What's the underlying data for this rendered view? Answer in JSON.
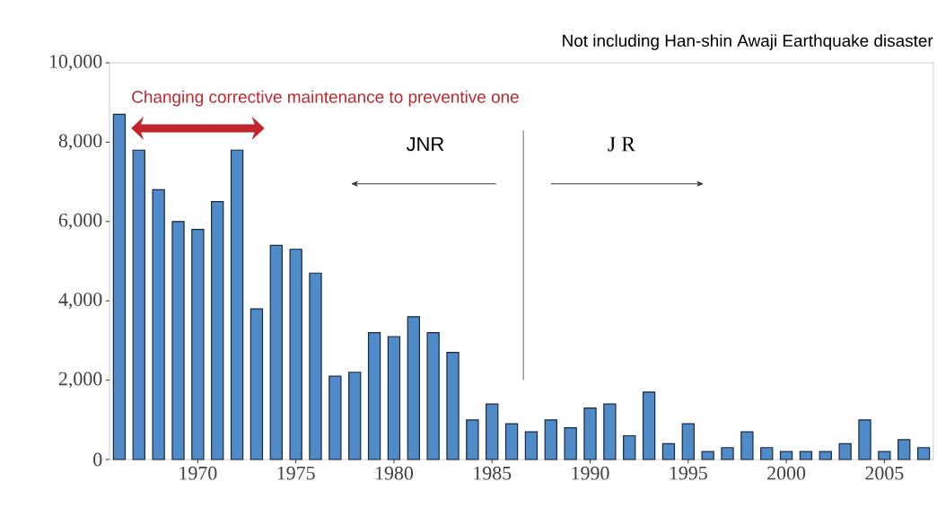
{
  "chart_data": {
    "type": "bar",
    "x": [
      1966,
      1967,
      1968,
      1969,
      1970,
      1971,
      1972,
      1973,
      1974,
      1975,
      1976,
      1977,
      1978,
      1979,
      1980,
      1981,
      1982,
      1983,
      1984,
      1985,
      1986,
      1987,
      1988,
      1989,
      1990,
      1991,
      1992,
      1993,
      1994,
      1995,
      1996,
      1997,
      1998,
      1999,
      2000,
      2001,
      2002,
      2003,
      2004,
      2005,
      2006,
      2007
    ],
    "values": [
      8700,
      7800,
      6800,
      6000,
      5800,
      6500,
      7800,
      3800,
      5400,
      5300,
      4700,
      2100,
      2200,
      3200,
      3100,
      3600,
      3200,
      2700,
      1000,
      1400,
      900,
      700,
      1000,
      800,
      1300,
      1400,
      600,
      1700,
      400,
      900,
      200,
      300,
      700,
      300,
      200,
      200,
      200,
      400,
      1000,
      200,
      500,
      300
    ],
    "color": "#4f8ac9",
    "xlim": [
      1965.5,
      2007.5
    ],
    "xticks": [
      1970,
      1975,
      1980,
      1985,
      1990,
      1995,
      2000,
      2005
    ],
    "ylim": [
      0,
      10000
    ],
    "yticks": [
      {
        "value": 0,
        "label": "0"
      },
      {
        "value": 2000,
        "label": "2,000"
      },
      {
        "value": 4000,
        "label": "4,000"
      },
      {
        "value": 6000,
        "label": "6,000"
      },
      {
        "value": 8000,
        "label": "8,000"
      },
      {
        "value": 10000,
        "label": "10,000"
      }
    ],
    "ref_lines": [
      {
        "axis": "x",
        "value": 1986.6,
        "color": "#808080"
      }
    ],
    "annotations": [
      "Not including  Han-shin Awaji  Earthquake disaster",
      "JNR",
      "J R",
      "Changing  corrective maintenance to preventive one"
    ]
  }
}
